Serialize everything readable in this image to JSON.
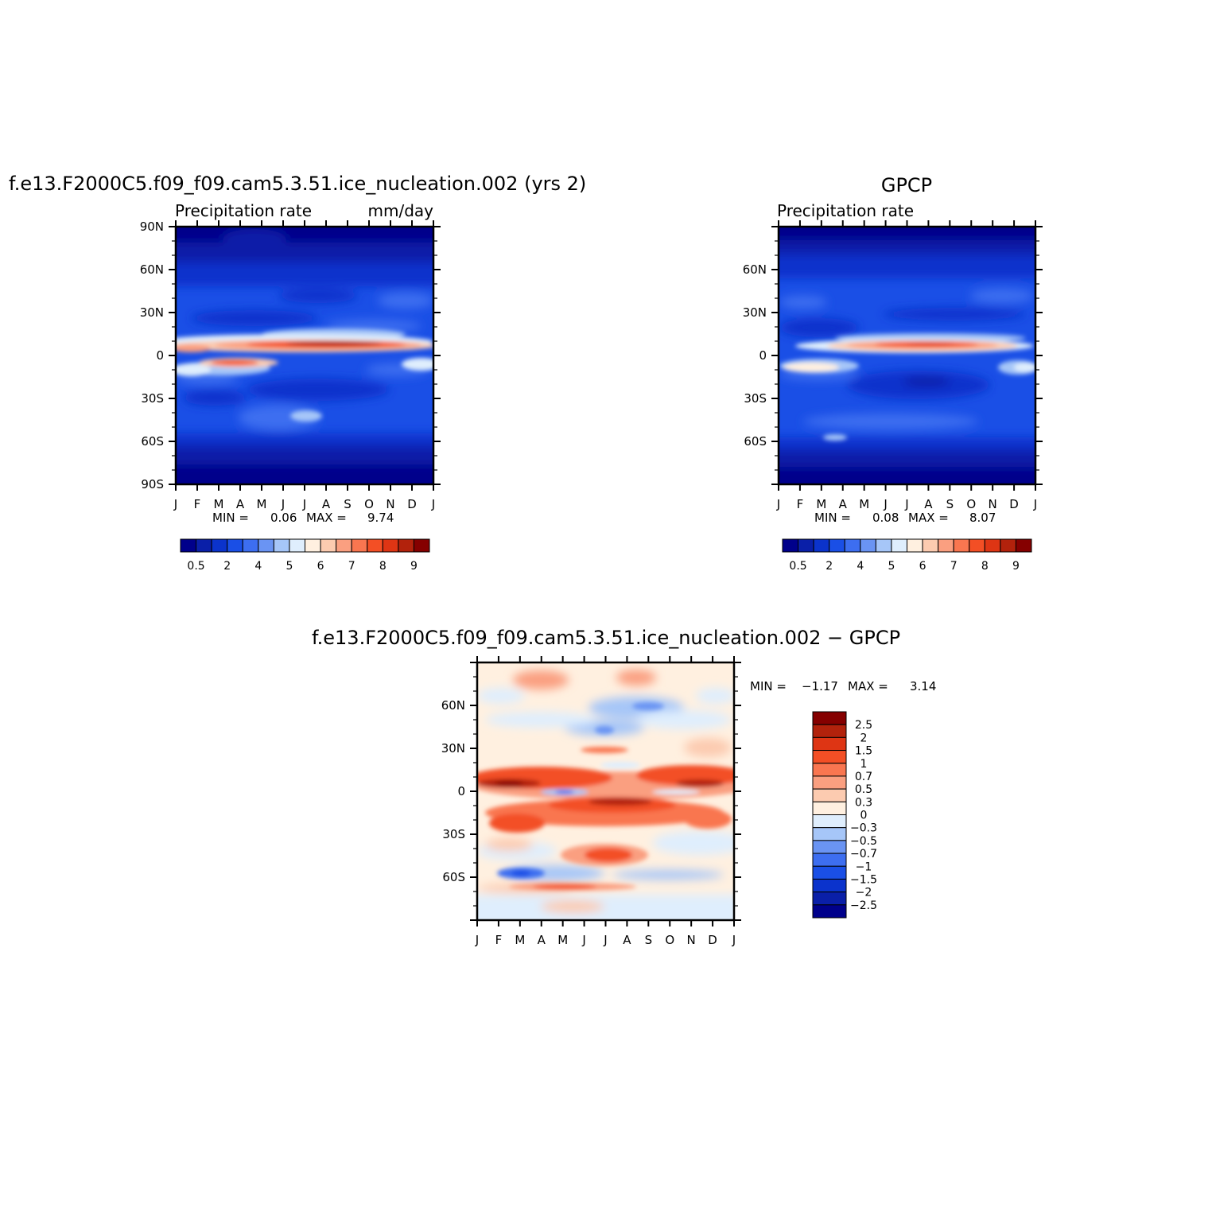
{
  "chart_data": [
    {
      "type": "heatmap",
      "title": "f.e13.F2000C5.f09_f09.cam5.3.51.ice_nucleation.002  (yrs  2)",
      "left_label": "Precipitation  rate",
      "right_label": "mm/day",
      "x_tick_labels": [
        "J",
        "F",
        "M",
        "A",
        "M",
        "J",
        "J",
        "A",
        "S",
        "O",
        "N",
        "D",
        "J"
      ],
      "y_tick_labels": [
        "90N",
        "60N",
        "30N",
        "0",
        "30S",
        "60S",
        "90S"
      ],
      "ylim": [
        -90,
        90
      ],
      "stats": {
        "min_label": "MIN =",
        "min": "0.06",
        "max_label": "MAX =",
        "max": "9.74"
      },
      "colorbar_labels": [
        "0.5",
        "2",
        "4",
        "5",
        "6",
        "7",
        "8",
        "9"
      ],
      "colors": [
        "#00008b",
        "#0a1fa8",
        "#0b33cc",
        "#1a4fe6",
        "#3d6ef0",
        "#6a94f3",
        "#a6c6f8",
        "#dfeefd",
        "#fff0e0",
        "#fccbb0",
        "#fa9f80",
        "#f97650",
        "#f34f25",
        "#de3514",
        "#b2220c",
        "#850000"
      ]
    },
    {
      "type": "heatmap",
      "title": "GPCP",
      "left_label": "Precipitation  rate",
      "x_tick_labels": [
        "J",
        "F",
        "M",
        "A",
        "M",
        "J",
        "J",
        "A",
        "S",
        "O",
        "N",
        "D",
        "J"
      ],
      "y_tick_labels": [
        "60N",
        "30N",
        "0",
        "30S",
        "60S"
      ],
      "ylim": [
        -90,
        90
      ],
      "stats": {
        "min_label": "MIN =",
        "min": "0.08",
        "max_label": "MAX =",
        "max": "8.07"
      },
      "colorbar_labels": [
        "0.5",
        "2",
        "4",
        "5",
        "6",
        "7",
        "8",
        "9"
      ]
    },
    {
      "type": "heatmap",
      "title": "f.e13.F2000C5.f09_f09.cam5.3.51.ice_nucleation.002  −  GPCP",
      "x_tick_labels": [
        "J",
        "F",
        "M",
        "A",
        "M",
        "J",
        "J",
        "A",
        "S",
        "O",
        "N",
        "D",
        "J"
      ],
      "y_tick_labels": [
        "60N",
        "30N",
        "0",
        "30S",
        "60S"
      ],
      "ylim": [
        -90,
        90
      ],
      "stats": {
        "min_label": "MIN =",
        "min": "−1.17",
        "max_label": "MAX =",
        "max": "3.14"
      },
      "colorbar_labels": [
        "2.5",
        "2",
        "1.5",
        "1",
        "0.7",
        "0.5",
        "0.3",
        "0",
        "−0.3",
        "−0.5",
        "−0.7",
        "−1",
        "−1.5",
        "−2",
        "−2.5"
      ],
      "colors": [
        "#850000",
        "#b2220c",
        "#de3514",
        "#f34f25",
        "#f97650",
        "#fa9f80",
        "#fccbb0",
        "#fff0e0",
        "#dfeefd",
        "#a6c6f8",
        "#6a94f3",
        "#3d6ef0",
        "#1a4fe6",
        "#0b33cc",
        "#0a1fa8",
        "#00008b"
      ]
    }
  ]
}
